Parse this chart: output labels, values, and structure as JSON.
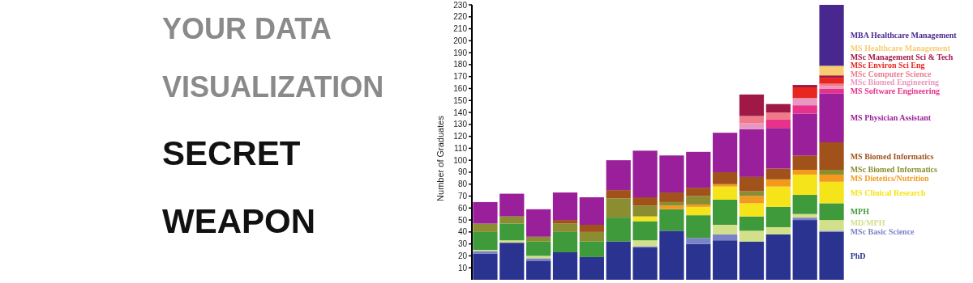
{
  "chart_data": {
    "type": "bar",
    "stacked": true,
    "title": "YOUR DATA VISUALIZATION",
    "subtitle": "SECRET WEAPON",
    "ylabel": "Number of Graduates",
    "legend": "right",
    "grid": false,
    "categories": [
      null,
      null,
      null,
      null,
      null,
      null,
      null,
      null,
      null,
      null,
      null,
      null,
      null,
      null
    ],
    "ylim": [
      0,
      230
    ],
    "yticks": [
      10,
      20,
      30,
      40,
      50,
      60,
      70,
      80,
      90,
      100,
      110,
      120,
      130,
      140,
      150,
      160,
      170,
      180,
      190,
      200,
      210,
      220,
      230
    ],
    "series": [
      {
        "name": "PhD",
        "color": "#2a3490",
        "values": [
          22,
          31,
          16,
          23,
          19,
          32,
          27,
          41,
          30,
          33,
          32,
          38,
          50,
          40
        ]
      },
      {
        "name": "MSc Basic Science",
        "color": "#7b83c8",
        "values": [
          2,
          0,
          2,
          0,
          0,
          0,
          1,
          0,
          5,
          5,
          0,
          0,
          2,
          1
        ]
      },
      {
        "name": "MD/MPH",
        "color": "#d3e08a",
        "values": [
          1,
          2,
          2,
          0,
          0,
          0,
          5,
          0,
          0,
          8,
          9,
          6,
          3,
          9
        ]
      },
      {
        "name": "MPH",
        "color": "#3f9a3c",
        "values": [
          15,
          14,
          12,
          17,
          13,
          20,
          16,
          18,
          19,
          21,
          12,
          17,
          16,
          14
        ]
      },
      {
        "name": "MS Clinical Research",
        "color": "#f5e41a",
        "values": [
          0,
          0,
          0,
          0,
          0,
          0,
          4,
          0,
          7,
          11,
          11,
          17,
          17,
          18
        ]
      },
      {
        "name": "MS Dietetics/Nutrition",
        "color": "#f39a1e",
        "values": [
          0,
          0,
          0,
          0,
          0,
          0,
          0,
          3,
          2,
          2,
          6,
          6,
          4,
          6
        ]
      },
      {
        "name": "MSc Biomed Informatics",
        "color": "#8a8e30",
        "values": [
          7,
          6,
          4,
          7,
          8,
          16,
          9,
          3,
          7,
          0,
          4,
          0,
          0,
          4
        ]
      },
      {
        "name": "MS Biomed Informatics",
        "color": "#a0521a",
        "values": [
          0,
          0,
          0,
          3,
          6,
          7,
          7,
          8,
          7,
          10,
          12,
          9,
          12,
          23
        ]
      },
      {
        "name": "MS Physician Assistant",
        "color": "#9a1f9a",
        "values": [
          18,
          19,
          23,
          23,
          23,
          25,
          39,
          31,
          30,
          33,
          40,
          34,
          35,
          41
        ]
      },
      {
        "name": "MS Software Engineering",
        "color": "#e8318a",
        "values": [
          0,
          0,
          0,
          0,
          0,
          0,
          0,
          0,
          0,
          0,
          0,
          7,
          7,
          4
        ]
      },
      {
        "name": "MSc Biomed Engineering",
        "color": "#e898c0",
        "values": [
          0,
          0,
          0,
          0,
          0,
          0,
          0,
          0,
          0,
          0,
          5,
          0,
          6,
          2
        ]
      },
      {
        "name": "MSc Computer Science",
        "color": "#f07a8a",
        "values": [
          0,
          0,
          0,
          0,
          0,
          0,
          0,
          0,
          0,
          0,
          6,
          6,
          0,
          2
        ]
      },
      {
        "name": "MSc Environ Sci Eng",
        "color": "#e8251e",
        "values": [
          0,
          0,
          0,
          0,
          0,
          0,
          0,
          0,
          0,
          0,
          0,
          0,
          9,
          5
        ]
      },
      {
        "name": "MSc Management Sci & Tech",
        "color": "#a01845",
        "values": [
          0,
          0,
          0,
          0,
          0,
          0,
          0,
          0,
          0,
          0,
          18,
          7,
          2,
          2
        ]
      },
      {
        "name": "MS Healthcare Management",
        "color": "#f8cc70",
        "values": [
          0,
          0,
          0,
          0,
          0,
          0,
          0,
          0,
          0,
          0,
          0,
          0,
          0,
          8
        ]
      },
      {
        "name": "MBA Healthcare Management",
        "color": "#48288f",
        "values": [
          0,
          0,
          0,
          0,
          0,
          0,
          0,
          0,
          0,
          0,
          0,
          0,
          0,
          51
        ]
      }
    ]
  }
}
